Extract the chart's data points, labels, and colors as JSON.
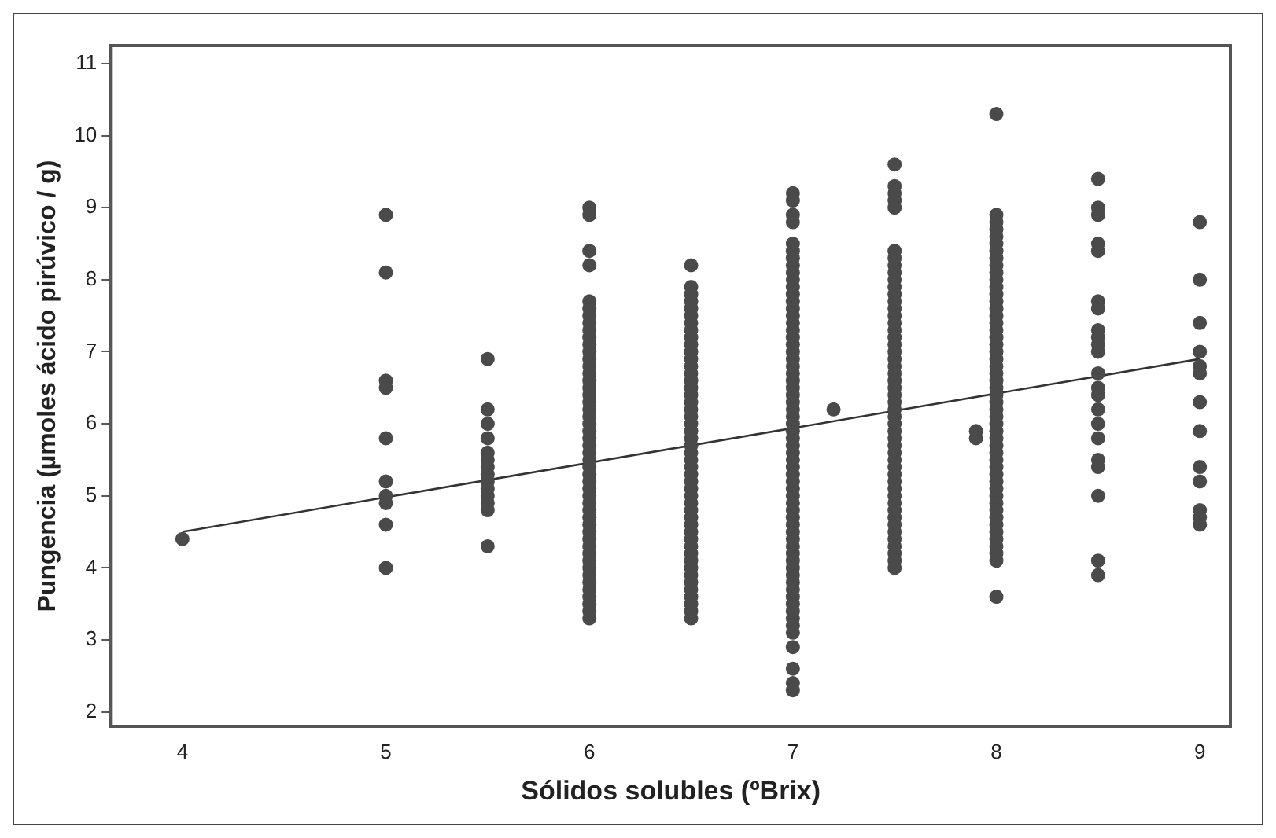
{
  "chart_data": {
    "type": "scatter",
    "xlabel": "Sólidos solubles (ºBrix)",
    "ylabel": "Pungencia (µmoles ácido pirúvico / g)",
    "xlim": [
      3.65,
      9.15
    ],
    "xticks": [
      4,
      5,
      6,
      7,
      8,
      9
    ],
    "ylim": [
      1.8,
      11.25
    ],
    "yticks": [
      2,
      3,
      4,
      5,
      6,
      7,
      8,
      9,
      10,
      11
    ],
    "grid": false,
    "legend": false,
    "marker": "circle",
    "series": [
      {
        "color": "#4a4a4a",
        "x": [
          4
        ],
        "values": [
          4.4
        ]
      },
      {
        "color": "#4a4a4a",
        "x": [
          5,
          5,
          5,
          5,
          5,
          5,
          5,
          5,
          5,
          5
        ],
        "values": [
          8.9,
          8.1,
          6.6,
          6.5,
          5.8,
          5.2,
          5.0,
          4.9,
          4.6,
          4.0
        ]
      },
      {
        "color": "#4a4a4a",
        "x": [
          5.5,
          5.5,
          5.5,
          5.5,
          5.5,
          5.5,
          5.5,
          5.5,
          5.5,
          5.5,
          5.5,
          5.5,
          5.5,
          5.5
        ],
        "values": [
          6.9,
          6.2,
          6.0,
          5.8,
          5.6,
          5.5,
          5.4,
          5.3,
          5.2,
          5.1,
          5.0,
          4.9,
          4.8,
          4.3
        ]
      },
      {
        "color": "#4a4a4a",
        "x": [
          6,
          6,
          6,
          6,
          6,
          6,
          6,
          6,
          6,
          6,
          6,
          6,
          6,
          6,
          6,
          6,
          6,
          6,
          6,
          6,
          6,
          6,
          6,
          6,
          6,
          6,
          6,
          6,
          6,
          6,
          6,
          6,
          6,
          6,
          6,
          6,
          6,
          6,
          6,
          6,
          6,
          6,
          6,
          6,
          6,
          6,
          6,
          6,
          6
        ],
        "values": [
          9.0,
          8.9,
          8.4,
          8.2,
          7.7,
          7.6,
          7.5,
          7.4,
          7.3,
          7.2,
          7.1,
          7.0,
          6.9,
          6.8,
          6.7,
          6.6,
          6.5,
          6.4,
          6.3,
          6.2,
          6.1,
          6.0,
          5.9,
          5.8,
          5.7,
          5.6,
          5.5,
          5.4,
          5.3,
          5.2,
          5.1,
          5.0,
          4.9,
          4.8,
          4.7,
          4.6,
          4.5,
          4.4,
          4.3,
          4.2,
          4.1,
          4.0,
          3.9,
          3.8,
          3.7,
          3.6,
          3.5,
          3.4,
          3.3
        ]
      },
      {
        "color": "#4a4a4a",
        "x": [
          6.5,
          6.5,
          6.5,
          6.5,
          6.5,
          6.5,
          6.5,
          6.5,
          6.5,
          6.5,
          6.5,
          6.5,
          6.5,
          6.5,
          6.5,
          6.5,
          6.5,
          6.5,
          6.5,
          6.5,
          6.5,
          6.5,
          6.5,
          6.5,
          6.5,
          6.5,
          6.5,
          6.5,
          6.5,
          6.5,
          6.5,
          6.5,
          6.5,
          6.5,
          6.5,
          6.5,
          6.5,
          6.5,
          6.5,
          6.5,
          6.5,
          6.5,
          6.5,
          6.5,
          6.5,
          6.5,
          6.5,
          6.5
        ],
        "values": [
          8.2,
          7.9,
          7.8,
          7.7,
          7.6,
          7.5,
          7.4,
          7.3,
          7.2,
          7.1,
          7.0,
          6.9,
          6.8,
          6.7,
          6.6,
          6.5,
          6.4,
          6.3,
          6.2,
          6.1,
          6.0,
          5.9,
          5.8,
          5.7,
          5.6,
          5.5,
          5.4,
          5.3,
          5.2,
          5.1,
          5.0,
          4.9,
          4.8,
          4.7,
          4.6,
          4.5,
          4.4,
          4.3,
          4.2,
          4.1,
          4.0,
          3.9,
          3.8,
          3.7,
          3.6,
          3.5,
          3.4,
          3.3
        ]
      },
      {
        "color": "#4a4a4a",
        "x": [
          7,
          7,
          7,
          7,
          7,
          7,
          7,
          7,
          7,
          7,
          7,
          7,
          7,
          7,
          7,
          7,
          7,
          7,
          7,
          7,
          7,
          7,
          7,
          7,
          7,
          7,
          7,
          7,
          7,
          7,
          7,
          7,
          7,
          7,
          7,
          7,
          7,
          7,
          7,
          7,
          7,
          7,
          7,
          7,
          7,
          7,
          7,
          7,
          7,
          7,
          7,
          7,
          7,
          7,
          7,
          7,
          7,
          7,
          7,
          7,
          7,
          7,
          7
        ],
        "values": [
          9.2,
          9.1,
          8.9,
          8.8,
          8.5,
          8.4,
          8.3,
          8.2,
          8.1,
          8.0,
          7.9,
          7.8,
          7.7,
          7.6,
          7.5,
          7.4,
          7.3,
          7.2,
          7.1,
          7.0,
          6.9,
          6.8,
          6.7,
          6.6,
          6.5,
          6.4,
          6.3,
          6.2,
          6.1,
          6.0,
          5.9,
          5.8,
          5.7,
          5.6,
          5.5,
          5.4,
          5.3,
          5.2,
          5.1,
          5.0,
          4.9,
          4.8,
          4.7,
          4.6,
          4.5,
          4.4,
          4.3,
          4.2,
          4.1,
          4.0,
          3.9,
          3.8,
          3.7,
          3.6,
          3.5,
          3.4,
          3.3,
          3.2,
          3.1,
          2.9,
          2.6,
          2.4,
          2.3
        ]
      },
      {
        "color": "#4a4a4a",
        "x": [
          7.2
        ],
        "values": [
          6.2
        ]
      },
      {
        "color": "#4a4a4a",
        "x": [
          7.5,
          7.5,
          7.5,
          7.5,
          7.5,
          7.5,
          7.5,
          7.5,
          7.5,
          7.5,
          7.5,
          7.5,
          7.5,
          7.5,
          7.5,
          7.5,
          7.5,
          7.5,
          7.5,
          7.5,
          7.5,
          7.5,
          7.5,
          7.5,
          7.5,
          7.5,
          7.5,
          7.5,
          7.5,
          7.5,
          7.5,
          7.5,
          7.5,
          7.5,
          7.5,
          7.5,
          7.5,
          7.5,
          7.5,
          7.5,
          7.5,
          7.5,
          7.5,
          7.5,
          7.5,
          7.5,
          7.5,
          7.5,
          7.5,
          7.5
        ],
        "values": [
          9.6,
          9.3,
          9.2,
          9.1,
          9.0,
          8.4,
          8.3,
          8.2,
          8.1,
          8.0,
          7.9,
          7.8,
          7.7,
          7.6,
          7.5,
          7.4,
          7.3,
          7.2,
          7.1,
          7.0,
          6.9,
          6.8,
          6.7,
          6.6,
          6.5,
          6.4,
          6.3,
          6.2,
          6.1,
          6.0,
          5.9,
          5.8,
          5.7,
          5.6,
          5.5,
          5.4,
          5.3,
          5.2,
          5.1,
          5.0,
          4.9,
          4.8,
          4.7,
          4.6,
          4.5,
          4.4,
          4.3,
          4.2,
          4.1,
          4.0
        ]
      },
      {
        "color": "#4a4a4a",
        "x": [
          7.9,
          7.9
        ],
        "values": [
          5.9,
          5.8
        ]
      },
      {
        "color": "#4a4a4a",
        "x": [
          8,
          8,
          8,
          8,
          8,
          8,
          8,
          8,
          8,
          8,
          8,
          8,
          8,
          8,
          8,
          8,
          8,
          8,
          8,
          8,
          8,
          8,
          8,
          8,
          8,
          8,
          8,
          8,
          8,
          8,
          8,
          8,
          8,
          8,
          8,
          8,
          8,
          8,
          8,
          8,
          8,
          8,
          8,
          8,
          8,
          8,
          8,
          8,
          8,
          8,
          8
        ],
        "values": [
          10.3,
          8.9,
          8.8,
          8.7,
          8.6,
          8.5,
          8.4,
          8.3,
          8.2,
          8.1,
          8.0,
          7.9,
          7.8,
          7.7,
          7.6,
          7.5,
          7.4,
          7.3,
          7.2,
          7.1,
          7.0,
          6.9,
          6.8,
          6.7,
          6.6,
          6.5,
          6.4,
          6.3,
          6.2,
          6.1,
          6.0,
          5.9,
          5.8,
          5.7,
          5.6,
          5.5,
          5.4,
          5.3,
          5.2,
          5.1,
          5.0,
          4.9,
          4.8,
          4.7,
          4.6,
          4.5,
          4.4,
          4.3,
          4.2,
          4.1,
          3.6
        ]
      },
      {
        "color": "#4a4a4a",
        "x": [
          8.5,
          8.5,
          8.5,
          8.5,
          8.5,
          8.5,
          8.5,
          8.5,
          8.5,
          8.5,
          8.5,
          8.5,
          8.5,
          8.5,
          8.5,
          8.5,
          8.5,
          8.5,
          8.5,
          8.5,
          8.5,
          8.5
        ],
        "values": [
          9.4,
          9.0,
          8.9,
          8.5,
          8.4,
          7.7,
          7.6,
          7.3,
          7.2,
          7.1,
          7.0,
          6.7,
          6.5,
          6.4,
          6.2,
          6.0,
          5.8,
          5.5,
          5.4,
          5.0,
          4.1,
          3.9
        ]
      },
      {
        "color": "#4a4a4a",
        "x": [
          9,
          9,
          9,
          9,
          9,
          9,
          9,
          9,
          9,
          9,
          9,
          9,
          9
        ],
        "values": [
          8.8,
          8.0,
          7.4,
          7.0,
          6.8,
          6.7,
          6.3,
          5.9,
          5.4,
          5.2,
          4.8,
          4.7,
          4.6
        ]
      },
      {
        "type": "line",
        "marker": "none",
        "color": "#333333",
        "x": [
          4,
          9
        ],
        "values": [
          4.5,
          6.9
        ]
      }
    ]
  }
}
